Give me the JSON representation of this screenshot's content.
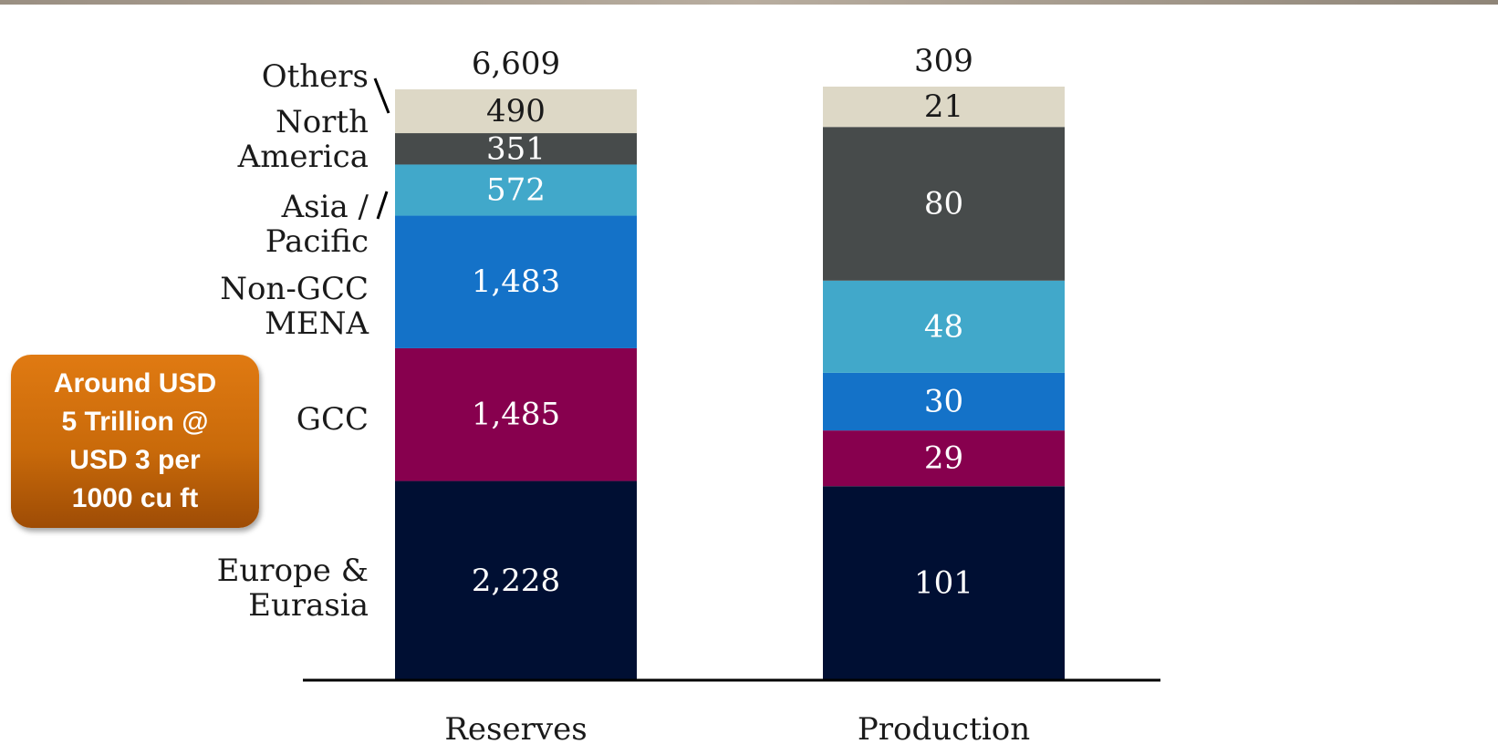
{
  "chart_data": {
    "type": "bar",
    "stacked": true,
    "categories": [
      "Reserves",
      "Production"
    ],
    "series": [
      {
        "name": "Europe & Eurasia",
        "values": [
          2228,
          101
        ],
        "color": "#000f33",
        "label_lines": [
          "Europe &",
          "Eurasia"
        ]
      },
      {
        "name": "GCC",
        "values": [
          1485,
          29
        ],
        "color": "#87004e",
        "label_lines": [
          "GCC"
        ]
      },
      {
        "name": "Non-GCC MENA",
        "values": [
          1483,
          30
        ],
        "color": "#1472c8",
        "label_lines": [
          "Non-GCC",
          "MENA"
        ]
      },
      {
        "name": "Asia / Pacific",
        "values": [
          572,
          48
        ],
        "color": "#41a8ca",
        "label_lines": [
          "Asia /",
          "Pacific"
        ]
      },
      {
        "name": "North America",
        "values": [
          351,
          80
        ],
        "color": "#474b4b",
        "label_lines": [
          "North",
          "America"
        ]
      },
      {
        "name": "Others",
        "values": [
          490,
          21
        ],
        "color": "#ddd8c6",
        "label_lines": [
          "Others"
        ]
      }
    ],
    "data_labels": [
      [
        "2,228",
        "1,485",
        "1,483",
        "572",
        "351",
        "490"
      ],
      [
        "101",
        "29",
        "30",
        "48",
        "80",
        "21"
      ]
    ],
    "totals": [
      6609,
      309
    ],
    "total_labels": [
      "6,609",
      "309"
    ],
    "legend": "left",
    "grid": false
  },
  "callout": {
    "text": "Around USD\n5 Trillion @\nUSD 3 per\n1000 cu ft",
    "color": "#c96a0a"
  }
}
